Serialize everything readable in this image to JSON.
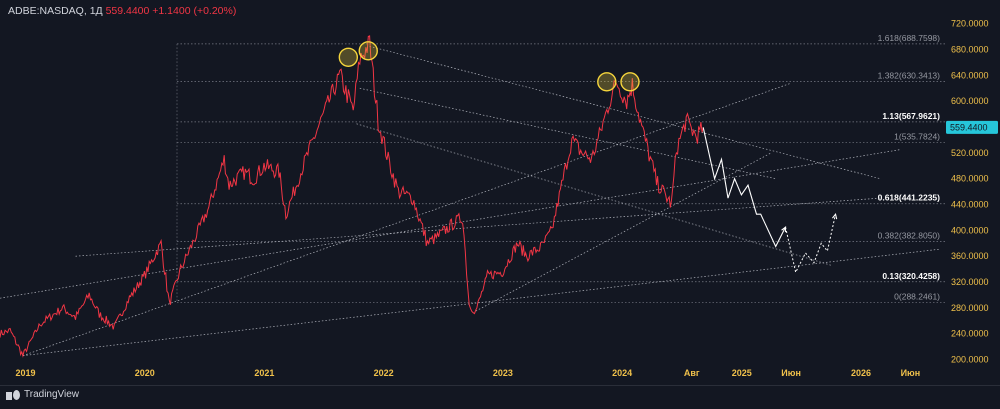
{
  "header": {
    "symbol": "ADBE:NASDAQ, 1Д",
    "price": "559.4400",
    "change": "+1.1400 (+0.20%)"
  },
  "brand": {
    "name": "TradingView"
  },
  "colors": {
    "background": "#131722",
    "price_line": "#f23645",
    "projection": "#ffffff",
    "axis_text": "#f0c14b",
    "highlight": "#f5d53c",
    "last_price_badge": "#26c6da"
  },
  "chart_data": {
    "type": "line",
    "title": "",
    "xlabel": "",
    "ylabel": "",
    "ylim": [
      190,
      735
    ],
    "x_range": [
      "2018-10-15",
      "2026-09-15"
    ],
    "y_ticks": [
      "720.0000",
      "680.0000",
      "640.0000",
      "600.0000",
      "560.0000",
      "520.0000",
      "480.0000",
      "440.0000",
      "400.0000",
      "360.0000",
      "320.0000",
      "280.0000",
      "240.0000",
      "200.0000"
    ],
    "x_ticks": [
      {
        "label": "2019",
        "date": "2019-01-01"
      },
      {
        "label": "2020",
        "date": "2020-01-01"
      },
      {
        "label": "2021",
        "date": "2021-01-01"
      },
      {
        "label": "2022",
        "date": "2022-01-01"
      },
      {
        "label": "2023",
        "date": "2023-01-01"
      },
      {
        "label": "2024",
        "date": "2024-01-01"
      },
      {
        "label": "Авг",
        "date": "2024-08-01"
      },
      {
        "label": "2025",
        "date": "2025-01-01"
      },
      {
        "label": "Июн",
        "date": "2025-06-01"
      },
      {
        "label": "2026",
        "date": "2026-01-01"
      },
      {
        "label": "Июн",
        "date": "2026-06-01"
      }
    ],
    "last_price": {
      "label": "559.4400",
      "value": 559.44
    },
    "series": [
      {
        "values": [
          [
            "2018-10-15",
            240
          ],
          [
            "2018-11-15",
            245
          ],
          [
            "2018-12-24",
            206
          ],
          [
            "2019-02-15",
            255
          ],
          [
            "2019-04-25",
            280
          ],
          [
            "2019-06-03",
            265
          ],
          [
            "2019-07-15",
            300
          ],
          [
            "2019-08-15",
            270
          ],
          [
            "2019-09-30",
            250
          ],
          [
            "2019-11-15",
            295
          ],
          [
            "2019-12-31",
            330
          ],
          [
            "2020-02-20",
            380
          ],
          [
            "2020-03-16",
            286
          ],
          [
            "2020-04-20",
            340
          ],
          [
            "2020-05-31",
            385
          ],
          [
            "2020-07-15",
            435
          ],
          [
            "2020-08-31",
            510
          ],
          [
            "2020-09-15",
            470
          ],
          [
            "2020-10-31",
            490
          ],
          [
            "2020-11-30",
            480
          ],
          [
            "2020-12-31",
            500
          ],
          [
            "2021-02-15",
            490
          ],
          [
            "2021-03-08",
            425
          ],
          [
            "2021-04-30",
            500
          ],
          [
            "2021-06-15",
            560
          ],
          [
            "2021-08-20",
            640
          ],
          [
            "2021-09-30",
            585
          ],
          [
            "2021-10-20",
            665
          ],
          [
            "2021-11-19",
            690
          ],
          [
            "2021-12-15",
            570
          ],
          [
            "2022-01-15",
            510
          ],
          [
            "2022-02-15",
            460
          ],
          [
            "2022-03-31",
            450
          ],
          [
            "2022-05-15",
            380
          ],
          [
            "2022-06-15",
            390
          ],
          [
            "2022-07-31",
            410
          ],
          [
            "2022-08-31",
            420
          ],
          [
            "2022-09-20",
            285
          ],
          [
            "2022-10-10",
            275
          ],
          [
            "2022-11-15",
            330
          ],
          [
            "2022-12-31",
            336
          ],
          [
            "2023-02-15",
            380
          ],
          [
            "2023-03-15",
            360
          ],
          [
            "2023-04-30",
            375
          ],
          [
            "2023-05-31",
            400
          ],
          [
            "2023-06-30",
            470
          ],
          [
            "2023-07-31",
            540
          ],
          [
            "2023-08-31",
            520
          ],
          [
            "2023-09-30",
            510
          ],
          [
            "2023-10-31",
            560
          ],
          [
            "2023-11-30",
            610
          ],
          [
            "2023-12-15",
            630
          ],
          [
            "2024-01-15",
            600
          ],
          [
            "2024-02-01",
            625
          ],
          [
            "2024-03-01",
            560
          ],
          [
            "2024-04-15",
            475
          ],
          [
            "2024-05-31",
            440
          ],
          [
            "2024-06-15",
            525
          ],
          [
            "2024-07-15",
            570
          ],
          [
            "2024-08-15",
            545
          ],
          [
            "2024-09-05",
            559.44
          ]
        ]
      },
      {
        "values": [
          [
            "2024-09-05",
            559.44
          ],
          [
            "2024-10-10",
            480
          ],
          [
            "2024-10-31",
            510
          ],
          [
            "2024-11-20",
            450
          ],
          [
            "2024-12-10",
            480
          ],
          [
            "2024-12-31",
            455
          ],
          [
            "2025-01-20",
            470
          ],
          [
            "2025-02-15",
            425
          ],
          [
            "2025-02-28",
            425
          ],
          [
            "2025-04-15",
            375
          ],
          [
            "2025-05-15",
            405
          ],
          [
            "2025-06-15",
            335
          ],
          [
            "2025-07-15",
            365
          ],
          [
            "2025-08-10",
            350
          ],
          [
            "2025-09-01",
            380
          ],
          [
            "2025-09-20",
            368
          ],
          [
            "2025-10-15",
            425
          ]
        ]
      }
    ],
    "fib_levels": [
      {
        "label": "1.618(688.7598)",
        "value": 688.7598
      },
      {
        "label": "1.382(630.3413)",
        "value": 630.3413
      },
      {
        "label": "1.13(567.9621)",
        "value": 567.9621
      },
      {
        "label": "1(535.7824)",
        "value": 535.7824
      },
      {
        "label": "0.618(441.2235)",
        "value": 441.2235
      },
      {
        "label": "0.382(382.8050)",
        "value": 382.805
      },
      {
        "label": "0.13(320.4258)",
        "value": 320.4258
      },
      {
        "label": "0(288.2461)",
        "value": 288.2461
      }
    ],
    "trend_lines": [
      {
        "from": [
          "2018-12-24",
          206
        ],
        "to": [
          "2025-06-01",
          628
        ]
      },
      {
        "from": [
          "2018-10-15",
          295
        ],
        "to": [
          "2026-05-01",
          525
        ]
      },
      {
        "from": [
          "2018-12-24",
          206
        ],
        "to": [
          "2026-09-01",
          371
        ]
      },
      {
        "from": [
          "2019-06-03",
          360
        ],
        "to": [
          "2026-03-01",
          450
        ]
      },
      {
        "from": [
          "2021-11-19",
          685
        ],
        "to": [
          "2026-03-01",
          480
        ]
      },
      {
        "from": [
          "2021-10-20",
          620
        ],
        "to": [
          "2025-04-15",
          480
        ]
      },
      {
        "from": [
          "2021-10-10",
          565
        ],
        "to": [
          "2025-10-01",
          346
        ]
      },
      {
        "from": [
          "2022-10-10",
          275
        ],
        "to": [
          "2025-04-01",
          520
        ]
      }
    ],
    "highlights": [
      {
        "date": "2021-09-15",
        "value": 668
      },
      {
        "date": "2021-11-15",
        "value": 678
      },
      {
        "date": "2023-11-15",
        "value": 630
      },
      {
        "date": "2024-01-25",
        "value": 630
      }
    ]
  }
}
